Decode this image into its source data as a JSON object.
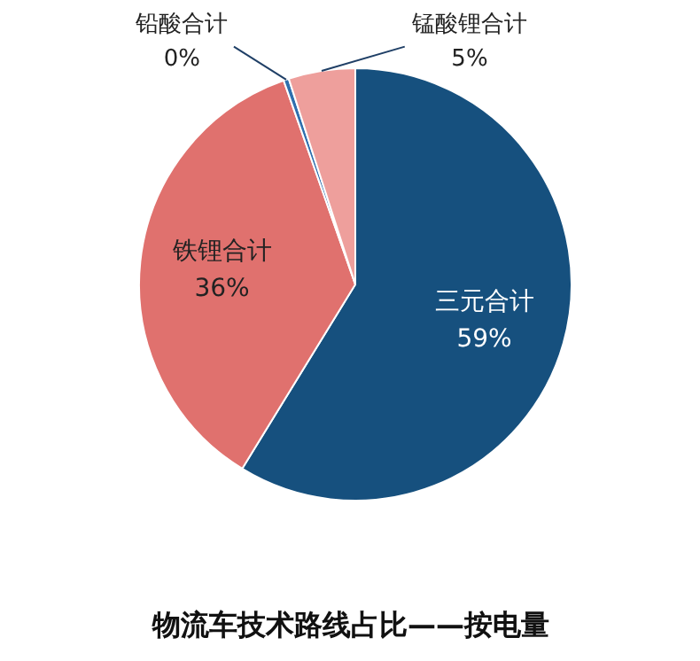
{
  "chart_data": {
    "type": "pie",
    "title": "物流车技术路线占比——按电量",
    "categories": [
      "三元合计",
      "铁锂合计",
      "铅酸合计",
      "锰酸锂合计"
    ],
    "values": [
      59,
      36,
      0.4,
      5
    ],
    "value_labels": [
      "59%",
      "36%",
      "0%",
      "5%"
    ],
    "colors": [
      "#16507e",
      "#e0716e",
      "#2e6fae",
      "#ee9f9c"
    ]
  }
}
